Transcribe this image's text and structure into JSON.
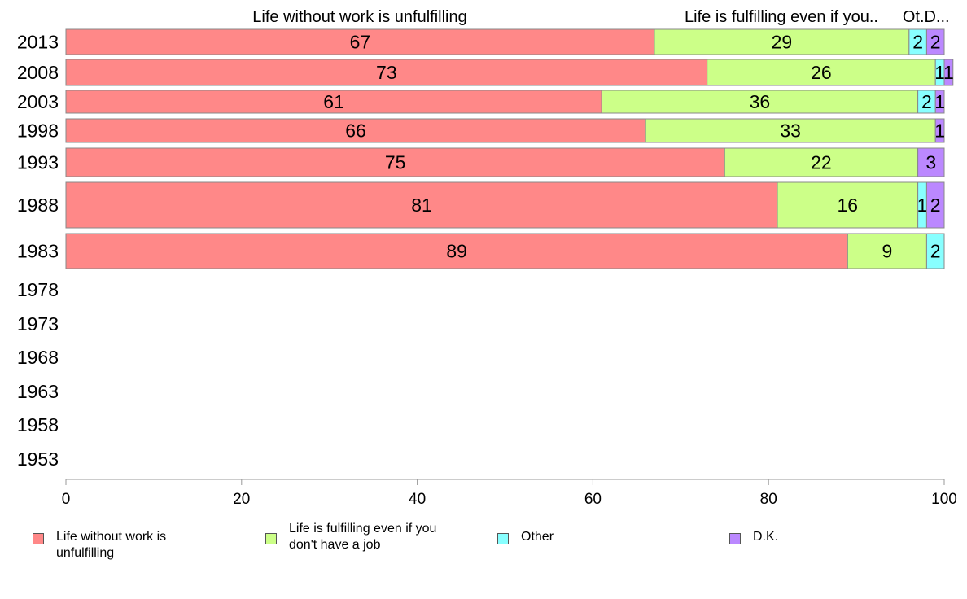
{
  "chart_data": {
    "type": "bar",
    "orientation": "horizontal",
    "stacked": true,
    "categories": [
      "2013",
      "2008",
      "2003",
      "1998",
      "1993",
      "1988",
      "1983",
      "1978",
      "1973",
      "1968",
      "1963",
      "1958",
      "1953"
    ],
    "series": [
      {
        "name": "Life without work is unfulfilling",
        "header": "Life without work is unfulfilling",
        "color": "#ff8888",
        "values": [
          67,
          73,
          61,
          66,
          75,
          81,
          89,
          null,
          null,
          null,
          null,
          null,
          null
        ]
      },
      {
        "name": "Life is fulfilling even if you don't have a job",
        "header": "Life is fulfilling even if you..",
        "color": "#ccff88",
        "values": [
          29,
          26,
          36,
          33,
          22,
          16,
          9,
          null,
          null,
          null,
          null,
          null,
          null
        ]
      },
      {
        "name": "Other",
        "header": "Ot..",
        "color": "#88ffff",
        "values": [
          2,
          1,
          2,
          0,
          0,
          1,
          2,
          null,
          null,
          null,
          null,
          null,
          null
        ]
      },
      {
        "name": "D.K.",
        "header": "D...",
        "color": "#bb88ff",
        "values": [
          2,
          1,
          1,
          1,
          3,
          2,
          0,
          null,
          null,
          null,
          null,
          null,
          null
        ]
      }
    ],
    "xlim": [
      0,
      100
    ],
    "xticks": [
      "0",
      "20",
      "40",
      "60",
      "80",
      "100"
    ],
    "grid": false,
    "legend_position": "bottom"
  },
  "legend": {
    "items": [
      {
        "label": "Life without work is unfulfilling",
        "color": "#ff8888"
      },
      {
        "label": "Life is fulfilling even if you don't have a job",
        "color": "#ccff88"
      },
      {
        "label": "Other",
        "color": "#88ffff"
      },
      {
        "label": "D.K.",
        "color": "#bb88ff"
      }
    ]
  }
}
